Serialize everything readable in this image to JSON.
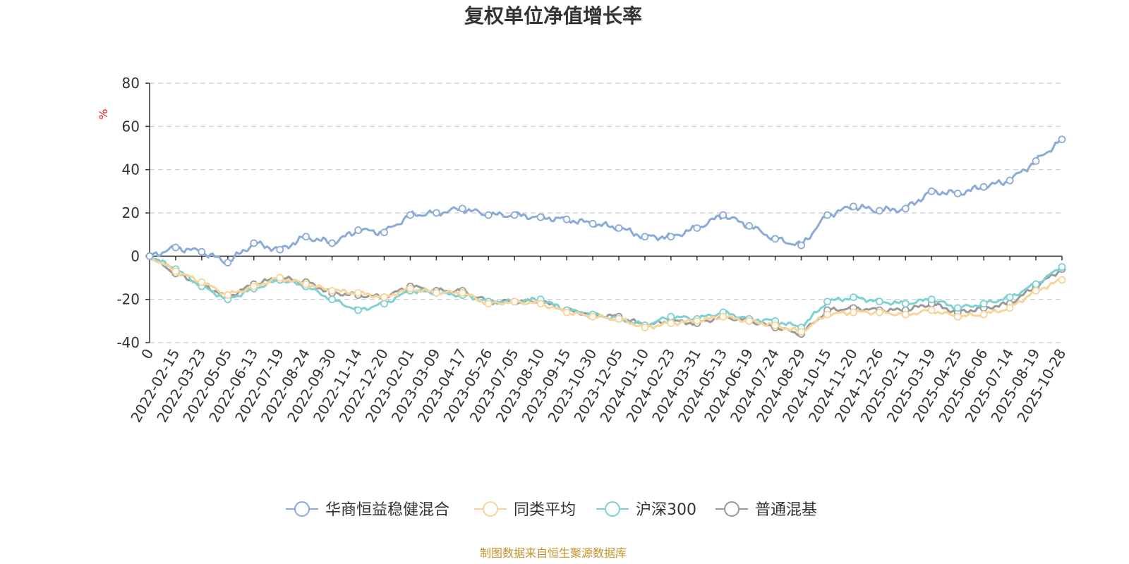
{
  "chart_data": {
    "type": "line",
    "title": "复权单位净值增长率",
    "ylabel": "%",
    "ylim": [
      -40,
      80
    ],
    "yticks": [
      "80",
      "60",
      "40",
      "20",
      "0",
      "-20",
      "-40"
    ],
    "x": [
      "0",
      "2022-02-15",
      "2022-03-23",
      "2022-05-05",
      "2022-06-13",
      "2022-07-19",
      "2022-08-24",
      "2022-09-30",
      "2022-11-14",
      "2022-12-20",
      "2023-02-01",
      "2023-03-09",
      "2023-04-17",
      "2023-05-26",
      "2023-07-05",
      "2023-08-10",
      "2023-09-15",
      "2023-10-30",
      "2023-12-05",
      "2024-01-10",
      "2024-02-23",
      "2024-03-31",
      "2024-05-13",
      "2024-06-19",
      "2024-07-24",
      "2024-08-29",
      "2024-10-15",
      "2024-11-20",
      "2024-12-26",
      "2025-02-11",
      "2025-03-19",
      "2025-04-25",
      "2025-06-06",
      "2025-07-14",
      "2025-08-19",
      "2025-10-28"
    ],
    "grid": true,
    "legend_position": "bottom",
    "series": [
      {
        "name": "华商恒益稳健混合",
        "color": "#8aaad8",
        "values": [
          0,
          4,
          2,
          -3,
          6,
          3,
          9,
          6,
          12,
          11,
          19,
          20,
          22,
          19,
          19,
          18,
          17,
          15,
          13,
          9,
          9,
          13,
          19,
          14,
          8,
          5,
          19,
          23,
          21,
          22,
          30,
          29,
          32,
          35,
          44,
          54
        ]
      },
      {
        "name": "同类平均",
        "color": "#f8d49a",
        "values": [
          0,
          -7,
          -12,
          -18,
          -14,
          -10,
          -13,
          -16,
          -17,
          -19,
          -15,
          -17,
          -17,
          -22,
          -21,
          -22,
          -26,
          -28,
          -29,
          -33,
          -31,
          -30,
          -28,
          -30,
          -32,
          -35,
          -27,
          -26,
          -26,
          -27,
          -25,
          -28,
          -27,
          -24,
          -16,
          -11
        ]
      },
      {
        "name": "沪深300",
        "color": "#7dd1d3",
        "values": [
          0,
          -6,
          -14,
          -20,
          -15,
          -11,
          -14,
          -20,
          -25,
          -22,
          -16,
          -17,
          -18,
          -21,
          -21,
          -20,
          -25,
          -27,
          -29,
          -32,
          -28,
          -29,
          -26,
          -29,
          -30,
          -33,
          -21,
          -19,
          -21,
          -22,
          -20,
          -24,
          -22,
          -19,
          -13,
          -5
        ]
      },
      {
        "name": "普通混基",
        "color": "#999999",
        "values": [
          0,
          -8,
          -13,
          -19,
          -13,
          -10,
          -12,
          -17,
          -18,
          -19,
          -14,
          -16,
          -16,
          -21,
          -21,
          -21,
          -25,
          -27,
          -28,
          -32,
          -30,
          -31,
          -28,
          -30,
          -33,
          -36,
          -25,
          -24,
          -25,
          -25,
          -22,
          -26,
          -24,
          -22,
          -14,
          -6
        ]
      }
    ],
    "source": "制图数据来自恒生聚源数据库"
  }
}
